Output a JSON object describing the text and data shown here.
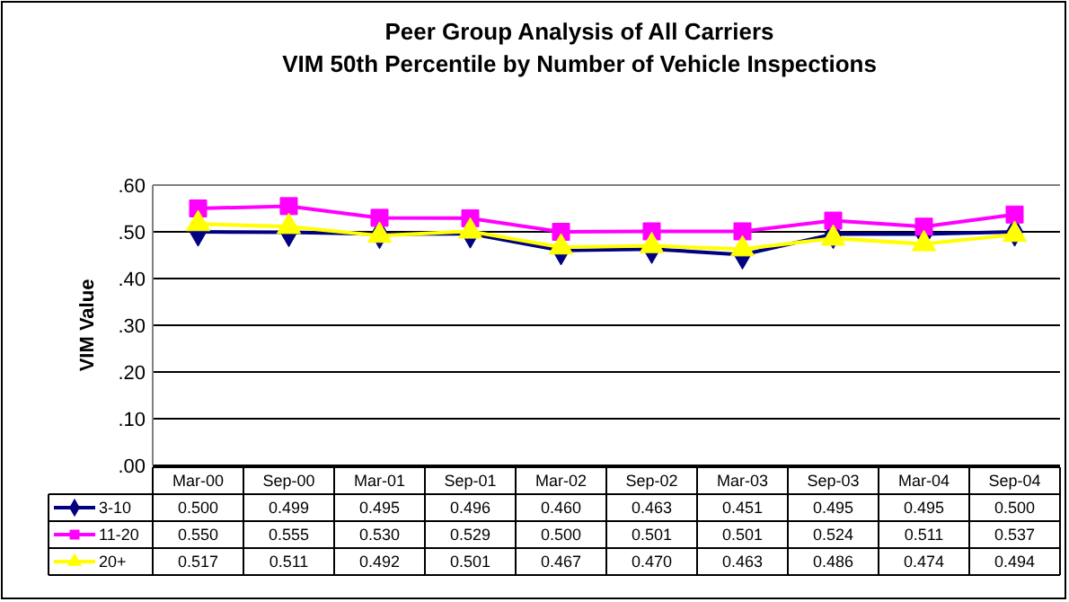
{
  "chart_data": {
    "type": "line",
    "title": "Peer Group Analysis of All Carriers\nVIM 50th Percentile by Number of Vehicle Inspections",
    "ylabel": "VIM Value",
    "categories": [
      "Mar-00",
      "Sep-00",
      "Mar-01",
      "Sep-01",
      "Mar-02",
      "Sep-02",
      "Mar-03",
      "Sep-03",
      "Mar-04",
      "Sep-04"
    ],
    "series": [
      {
        "name": "3-10",
        "color": "#000080",
        "marker": "diamond",
        "values": [
          0.5,
          0.499,
          0.495,
          0.496,
          0.46,
          0.463,
          0.451,
          0.495,
          0.495,
          0.5
        ],
        "value_labels": [
          "0.500",
          "0.499",
          "0.495",
          "0.496",
          "0.460",
          "0.463",
          "0.451",
          "0.495",
          "0.495",
          "0.500"
        ]
      },
      {
        "name": "11-20",
        "color": "#ff00ff",
        "marker": "square",
        "values": [
          0.55,
          0.555,
          0.53,
          0.529,
          0.5,
          0.501,
          0.501,
          0.524,
          0.511,
          0.537
        ],
        "value_labels": [
          "0.550",
          "0.555",
          "0.530",
          "0.529",
          "0.500",
          "0.501",
          "0.501",
          "0.524",
          "0.511",
          "0.537"
        ]
      },
      {
        "name": "20+",
        "color": "#ffff00",
        "marker": "triangle",
        "values": [
          0.517,
          0.511,
          0.492,
          0.501,
          0.467,
          0.47,
          0.463,
          0.486,
          0.474,
          0.494
        ],
        "value_labels": [
          "0.517",
          "0.511",
          "0.492",
          "0.501",
          "0.467",
          "0.470",
          "0.463",
          "0.486",
          "0.474",
          "0.494"
        ]
      }
    ],
    "ylim": [
      0,
      0.6
    ],
    "yticks": [
      {
        "value": 0,
        "label": ".00"
      },
      {
        "value": 0.1,
        "label": ".10"
      },
      {
        "value": 0.2,
        "label": ".20"
      },
      {
        "value": 0.3,
        "label": ".30"
      },
      {
        "value": 0.4,
        "label": ".40"
      },
      {
        "value": 0.5,
        "label": ".50"
      },
      {
        "value": 0.6,
        "label": ".60"
      }
    ],
    "grid": "y",
    "legend": "bottom",
    "line_style": "solid"
  }
}
